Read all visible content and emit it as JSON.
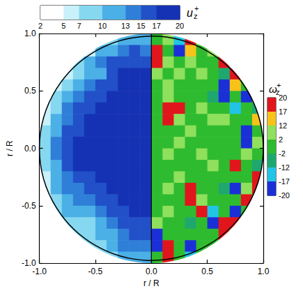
{
  "chart_data": {
    "type": "heatmap",
    "xlabel": "r / R",
    "ylabel": "r / R",
    "xlim": [
      -1,
      1
    ],
    "ylim": [
      -1,
      1
    ],
    "xticks": [
      {
        "value": -1,
        "label": "-1.0"
      },
      {
        "value": -0.5,
        "label": "-0.5"
      },
      {
        "value": 0,
        "label": "0.0"
      },
      {
        "value": 0.5,
        "label": "0.5"
      },
      {
        "value": 1,
        "label": "1.0"
      }
    ],
    "yticks": [
      {
        "value": -1,
        "label": "-1.0"
      },
      {
        "value": -0.5,
        "label": "-0.5"
      },
      {
        "value": 0,
        "label": "0.0"
      },
      {
        "value": 0.5,
        "label": "0.5"
      },
      {
        "value": 1,
        "label": "1.0"
      }
    ],
    "fields": [
      {
        "colorbar": {
          "title": {
            "symbol": "u",
            "subscript": "z",
            "superscript": "+"
          },
          "ticks": [
            2,
            5,
            7,
            10,
            13,
            15,
            17,
            20
          ],
          "colors": [
            "#ffffff",
            "#c8f1fa",
            "#86d8f0",
            "#4bb0e6",
            "#2f7fd8",
            "#2150c8",
            "#1532b4"
          ]
        },
        "x": [
          -0.95,
          -0.85,
          -0.75,
          -0.65,
          -0.55,
          -0.45,
          -0.35,
          -0.25,
          -0.15,
          -0.05
        ],
        "y": [
          0.95,
          0.85,
          0.75,
          0.65,
          0.55,
          0.45,
          0.35,
          0.25,
          0.15,
          0.05,
          -0.05,
          -0.15,
          -0.25,
          -0.35,
          -0.45,
          -0.55,
          -0.65,
          -0.75,
          -0.85,
          -0.95
        ],
        "values": [
          [
            null,
            null,
            null,
            null,
            null,
            8,
            10,
            12,
            13,
            13
          ],
          [
            null,
            null,
            null,
            null,
            7,
            11,
            13,
            15,
            16,
            15
          ],
          [
            null,
            null,
            6,
            8,
            12,
            14,
            16,
            17,
            17,
            17
          ],
          [
            null,
            null,
            7,
            10,
            11,
            13,
            16,
            18,
            18,
            18
          ],
          [
            null,
            6,
            9,
            12,
            15,
            16,
            17,
            18,
            18,
            18
          ],
          [
            5,
            8,
            11,
            14,
            17,
            17,
            18,
            18,
            19,
            19
          ],
          [
            6,
            10,
            14,
            16,
            17,
            18,
            18,
            19,
            19,
            19
          ],
          [
            7,
            12,
            15,
            17,
            18,
            18,
            19,
            19,
            19,
            19
          ],
          [
            8,
            13,
            16,
            17,
            18,
            19,
            19,
            19,
            19,
            19
          ],
          [
            9,
            14,
            16,
            18,
            18,
            19,
            19,
            20,
            19,
            19
          ],
          [
            9,
            14,
            17,
            18,
            18,
            19,
            19,
            19,
            19,
            19
          ],
          [
            8,
            13,
            16,
            18,
            18,
            18,
            19,
            19,
            19,
            19
          ],
          [
            7,
            12,
            15,
            17,
            17,
            18,
            18,
            19,
            19,
            19
          ],
          [
            6,
            11,
            14,
            15,
            16,
            17,
            18,
            18,
            19,
            19
          ],
          [
            5,
            9,
            13,
            14,
            14,
            16,
            17,
            18,
            18,
            18
          ],
          [
            null,
            8,
            11,
            12,
            12,
            14,
            16,
            17,
            18,
            18
          ],
          [
            null,
            null,
            9,
            10,
            9,
            12,
            15,
            16,
            17,
            17
          ],
          [
            null,
            null,
            8,
            9,
            8,
            11,
            13,
            15,
            16,
            16
          ],
          [
            null,
            null,
            null,
            null,
            8,
            10,
            12,
            14,
            15,
            15
          ],
          [
            null,
            null,
            null,
            null,
            null,
            8,
            10,
            11,
            12,
            12
          ]
        ]
      },
      {
        "colorbar": {
          "title": {
            "symbol": "ω",
            "subscript": "z",
            "superscript": "+"
          },
          "ticks": [
            20,
            17,
            12,
            2,
            -2,
            -12,
            -17,
            -20
          ],
          "colors": [
            "#e0161c",
            "#f7c21a",
            "#8fe05c",
            "#2fbb2f",
            "#1ea86e",
            "#22c4e6",
            "#1a30d6"
          ]
        },
        "x": [
          0.05,
          0.15,
          0.25,
          0.35,
          0.45,
          0.55,
          0.65,
          0.75,
          0.85,
          0.95
        ],
        "y": [
          0.95,
          0.85,
          0.75,
          0.65,
          0.55,
          0.45,
          0.35,
          0.25,
          0.15,
          0.05,
          -0.05,
          -0.15,
          -0.25,
          -0.35,
          -0.45,
          -0.55,
          -0.65,
          -0.75,
          -0.85,
          -0.95
        ],
        "values": [
          [
            0,
            3,
            -15,
            18,
            5,
            null,
            null,
            null,
            null,
            null
          ],
          [
            22,
            0,
            -18,
            12,
            0,
            3,
            null,
            null,
            null,
            null
          ],
          [
            22,
            5,
            0,
            3,
            0,
            0,
            22,
            -15,
            null,
            null
          ],
          [
            5,
            0,
            2,
            0,
            3,
            0,
            -3,
            22,
            null,
            null
          ],
          [
            0,
            3,
            0,
            0,
            0,
            0,
            -18,
            15,
            0,
            null
          ],
          [
            0,
            3,
            0,
            0,
            0,
            -3,
            -18,
            0,
            -20,
            5
          ],
          [
            0,
            22,
            22,
            0,
            3,
            0,
            0,
            -15,
            0,
            -12
          ],
          [
            0,
            22,
            5,
            0,
            0,
            3,
            5,
            0,
            0,
            15
          ],
          [
            0,
            0,
            0,
            3,
            0,
            0,
            0,
            0,
            -20,
            0
          ],
          [
            0,
            0,
            3,
            0,
            0,
            0,
            0,
            0,
            -20,
            3
          ],
          [
            0,
            3,
            0,
            0,
            5,
            0,
            0,
            0,
            3,
            0
          ],
          [
            0,
            0,
            0,
            0,
            0,
            3,
            0,
            22,
            0,
            -3
          ],
          [
            0,
            0,
            3,
            0,
            0,
            0,
            0,
            0,
            0,
            18
          ],
          [
            0,
            5,
            0,
            22,
            0,
            0,
            -3,
            -18,
            3,
            22
          ],
          [
            0,
            0,
            0,
            22,
            5,
            0,
            0,
            0,
            22,
            0
          ],
          [
            0,
            3,
            0,
            0,
            22,
            -15,
            0,
            -18,
            0,
            null
          ],
          [
            3,
            0,
            0,
            -5,
            0,
            -18,
            22,
            22,
            null,
            null
          ],
          [
            -18,
            0,
            0,
            0,
            0,
            0,
            22,
            0,
            null,
            null
          ],
          [
            -18,
            22,
            0,
            -20,
            0,
            0,
            null,
            null,
            null,
            null
          ],
          [
            0,
            22,
            0,
            -15,
            0,
            null,
            null,
            null,
            null,
            null
          ]
        ]
      }
    ]
  }
}
